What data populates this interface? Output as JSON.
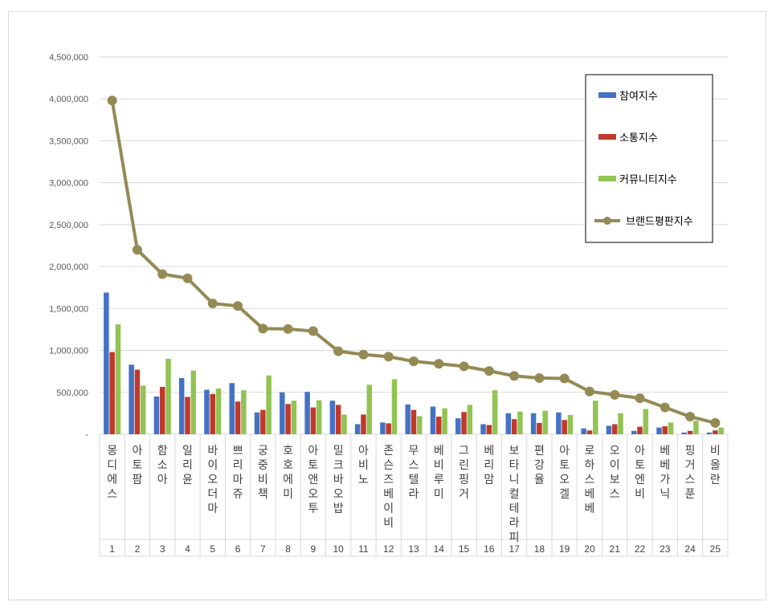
{
  "chart_data": {
    "type": "bar",
    "title": "",
    "xlabel": "",
    "ylabel": "",
    "ylim": [
      0,
      4500000
    ],
    "yticks": [
      "-",
      "500,000",
      "1,000,000",
      "1,500,000",
      "2,000,000",
      "2,500,000",
      "3,000,000",
      "3,500,000",
      "4,000,000",
      "4,500,000"
    ],
    "grid": true,
    "legend_position": "top-right",
    "categories": [
      "몽디에스",
      "아토팜",
      "함소아",
      "일리윤",
      "바이오더마",
      "쁘리마쥬",
      "궁중비책",
      "호호에미",
      "아토앤오투",
      "밀크바오밥",
      "아비노",
      "존슨즈베이비",
      "무스텔라",
      "베비루미",
      "그린핑거",
      "베리맘",
      "보타니컬테라피",
      "편강율",
      "아토오겔",
      "로하스베베",
      "오이보스",
      "아토엔비",
      "베베가닉",
      "핑거스푼",
      "비올란"
    ],
    "ranks": [
      "1",
      "2",
      "3",
      "4",
      "5",
      "6",
      "7",
      "8",
      "9",
      "10",
      "11",
      "12",
      "13",
      "14",
      "15",
      "16",
      "17",
      "18",
      "19",
      "20",
      "21",
      "22",
      "23",
      "24",
      "25"
    ],
    "series": [
      {
        "name": "참여지수",
        "color": "#4472c4",
        "kind": "bar",
        "values": [
          1690000,
          830000,
          450000,
          670000,
          530000,
          610000,
          260000,
          500000,
          505000,
          400000,
          120000,
          140000,
          355000,
          330000,
          190000,
          120000,
          250000,
          250000,
          260000,
          70000,
          100000,
          40000,
          80000,
          20000,
          20000
        ]
      },
      {
        "name": "소통지수",
        "color": "#c0392b",
        "kind": "bar",
        "values": [
          980000,
          770000,
          565000,
          445000,
          480000,
          390000,
          290000,
          360000,
          320000,
          350000,
          235000,
          130000,
          290000,
          210000,
          265000,
          110000,
          180000,
          135000,
          170000,
          45000,
          120000,
          90000,
          95000,
          40000,
          45000
        ]
      },
      {
        "name": "커뮤니티지수",
        "color": "#92c353",
        "kind": "bar",
        "values": [
          1310000,
          580000,
          900000,
          760000,
          545000,
          525000,
          700000,
          400000,
          405000,
          235000,
          590000,
          655000,
          215000,
          310000,
          350000,
          525000,
          270000,
          280000,
          230000,
          400000,
          250000,
          300000,
          140000,
          160000,
          80000
        ]
      },
      {
        "name": "브랜드평판지수",
        "color": "#948a54",
        "kind": "line",
        "values": [
          3980000,
          2200000,
          1910000,
          1860000,
          1560000,
          1530000,
          1260000,
          1255000,
          1230000,
          990000,
          950000,
          925000,
          870000,
          840000,
          810000,
          755000,
          695000,
          670000,
          665000,
          510000,
          470000,
          430000,
          320000,
          210000,
          135000
        ]
      }
    ]
  }
}
